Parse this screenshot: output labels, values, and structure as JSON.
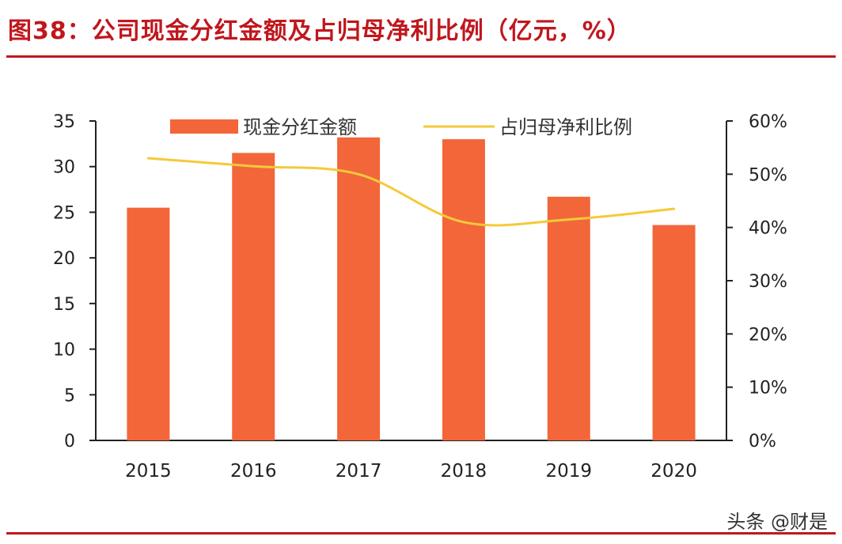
{
  "figure": {
    "title": "图38：公司现金分红金额及占归母净利比例（亿元，%）",
    "watermark": "头条 @财是"
  },
  "colors": {
    "title_red": "#c0171d",
    "bar": "#f2663a",
    "line": "#f5c93a",
    "axis": "#222222"
  },
  "chart_data": {
    "type": "bar",
    "title": "",
    "categories": [
      "2015",
      "2016",
      "2017",
      "2018",
      "2019",
      "2020"
    ],
    "series": [
      {
        "name": "现金分红金额",
        "type": "bar",
        "axis": "left",
        "values": [
          25.5,
          31.5,
          33.2,
          33.0,
          26.7,
          23.6
        ]
      },
      {
        "name": "占归母净利比例",
        "type": "line",
        "axis": "right",
        "values": [
          53,
          51.5,
          50,
          41,
          41.5,
          43.5
        ]
      }
    ],
    "y_left": {
      "ylim": [
        0,
        35
      ],
      "ticks": [
        "0",
        "5",
        "10",
        "15",
        "20",
        "25",
        "30",
        "35"
      ]
    },
    "y_right": {
      "ylim": [
        0,
        60
      ],
      "ticks": [
        "0%",
        "10%",
        "20%",
        "30%",
        "40%",
        "50%",
        "60%"
      ]
    },
    "grid": false,
    "legend_position": "top"
  }
}
